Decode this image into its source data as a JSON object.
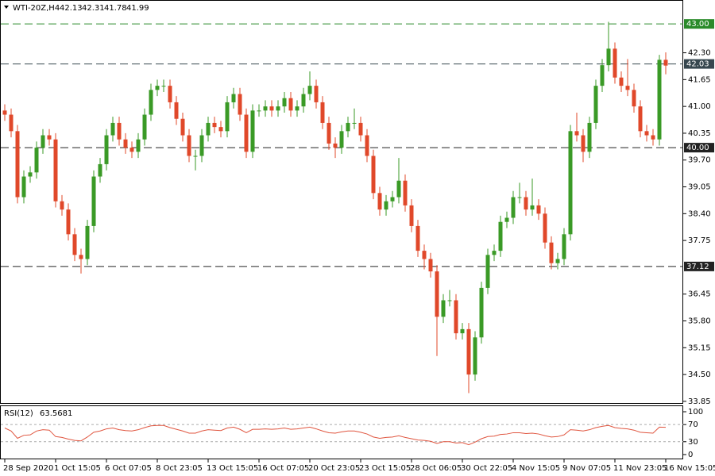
{
  "chart_data": [
    {
      "type": "candlestick",
      "title": "WTI-20Z,H4",
      "categories": [
        "28 Sep 2020",
        null,
        null,
        null,
        null,
        null,
        null,
        null,
        "1 Oct 15:05",
        null,
        null,
        null,
        null,
        null,
        null,
        null,
        "6 Oct 07:05",
        null,
        null,
        null,
        null,
        null,
        null,
        null,
        "8 Oct 23:05",
        null,
        null,
        null,
        null,
        null,
        null,
        null,
        "13 Oct 15:05",
        null,
        null,
        null,
        null,
        null,
        null,
        null,
        "16 Oct 07:05",
        null,
        null,
        null,
        null,
        null,
        null,
        null,
        "20 Oct 23:05",
        null,
        null,
        null,
        null,
        null,
        null,
        null,
        "23 Oct 15:05",
        null,
        null,
        null,
        null,
        null,
        null,
        null,
        "28 Oct 06:05",
        null,
        null,
        null,
        null,
        null,
        null,
        null,
        "30 Oct 22:05",
        null,
        null,
        null,
        null,
        null,
        null,
        null,
        "4 Nov 15:05",
        null,
        null,
        null,
        null,
        null,
        null,
        null,
        "9 Nov 07:05",
        null,
        null,
        null,
        null,
        null,
        null,
        null,
        "11 Nov 23:05",
        null,
        null,
        null,
        null,
        null,
        null,
        null,
        "16 Nov 15:05"
      ],
      "open": [
        40.9,
        40.8,
        40.4,
        38.8,
        39.3,
        39.4,
        40.0,
        40.3,
        40.2,
        38.7,
        38.5,
        37.9,
        37.4,
        37.3,
        38.1,
        39.3,
        39.6,
        40.3,
        40.6,
        40.2,
        40.0,
        39.9,
        40.2,
        40.8,
        41.4,
        41.5,
        41.5,
        41.1,
        40.7,
        40.3,
        39.8,
        39.8,
        40.3,
        40.6,
        40.5,
        40.4,
        41.1,
        41.3,
        40.8,
        39.9,
        40.9,
        40.9,
        41.0,
        40.9,
        41.0,
        41.2,
        40.9,
        41.0,
        41.3,
        41.5,
        41.1,
        40.6,
        40.1,
        40.0,
        40.4,
        40.6,
        40.6,
        40.3,
        39.8,
        38.9,
        38.5,
        38.7,
        38.8,
        39.2,
        38.6,
        38.1,
        37.5,
        37.3,
        37.0,
        35.9,
        36.3,
        36.3,
        35.5,
        35.6,
        34.5,
        35.4,
        36.6,
        37.4,
        37.5,
        38.2,
        38.3,
        38.8,
        38.8,
        38.5,
        38.6,
        38.4,
        37.7,
        37.2,
        37.3,
        37.9,
        40.4,
        40.3,
        39.9,
        40.6,
        41.5,
        42.0,
        42.4,
        41.7,
        41.5,
        41.4,
        41.0,
        40.4,
        40.3,
        40.2,
        42.13
      ],
      "high": [
        41.05,
        40.95,
        40.55,
        39.45,
        39.55,
        40.15,
        40.45,
        40.45,
        40.35,
        38.85,
        38.65,
        38.05,
        37.55,
        38.25,
        39.45,
        39.75,
        40.45,
        40.75,
        40.75,
        40.35,
        40.15,
        40.35,
        40.95,
        41.55,
        41.65,
        41.65,
        41.65,
        41.25,
        40.85,
        40.45,
        39.95,
        40.45,
        40.75,
        40.75,
        40.65,
        41.25,
        41.45,
        41.45,
        40.95,
        41.05,
        41.05,
        41.15,
        41.15,
        41.15,
        41.35,
        41.35,
        41.15,
        41.45,
        41.85,
        41.65,
        41.25,
        40.75,
        40.25,
        40.55,
        40.75,
        40.95,
        40.75,
        40.45,
        39.95,
        39.05,
        38.85,
        38.95,
        39.75,
        39.35,
        38.75,
        38.25,
        37.65,
        37.45,
        37.15,
        36.45,
        36.55,
        36.45,
        35.75,
        35.75,
        35.55,
        36.75,
        37.55,
        37.65,
        38.35,
        38.45,
        38.95,
        39.15,
        38.95,
        39.25,
        38.75,
        38.55,
        37.85,
        37.45,
        38.05,
        40.55,
        40.85,
        40.45,
        40.75,
        41.65,
        42.15,
        43.05,
        42.55,
        41.85,
        42.15,
        41.55,
        41.15,
        40.55,
        40.45,
        42.25,
        42.31
      ],
      "low": [
        40.65,
        40.25,
        38.65,
        38.65,
        39.15,
        39.25,
        39.85,
        40.05,
        38.55,
        38.35,
        37.75,
        37.25,
        36.95,
        37.15,
        37.95,
        39.15,
        39.45,
        40.15,
        40.05,
        39.85,
        39.75,
        39.75,
        40.05,
        40.65,
        41.25,
        41.35,
        40.95,
        40.55,
        40.15,
        39.65,
        39.45,
        39.65,
        40.15,
        40.35,
        40.25,
        40.25,
        40.95,
        40.65,
        39.75,
        39.75,
        40.75,
        40.75,
        40.75,
        40.75,
        40.85,
        40.75,
        40.75,
        40.85,
        41.15,
        40.95,
        40.45,
        39.95,
        39.75,
        39.85,
        40.25,
        40.45,
        40.15,
        39.65,
        38.75,
        38.35,
        38.35,
        38.55,
        38.65,
        38.45,
        37.95,
        37.35,
        37.05,
        36.85,
        34.95,
        35.75,
        36.15,
        35.35,
        35.35,
        34.05,
        34.35,
        35.25,
        36.45,
        37.25,
        37.35,
        38.05,
        38.15,
        38.65,
        38.35,
        38.35,
        38.25,
        37.55,
        37.05,
        37.05,
        37.15,
        37.75,
        40.15,
        39.65,
        39.75,
        40.45,
        41.35,
        41.85,
        41.55,
        41.35,
        41.25,
        40.85,
        40.25,
        40.15,
        40.05,
        40.05,
        41.78
      ],
      "close": [
        40.8,
        40.4,
        38.8,
        39.3,
        39.4,
        40.0,
        40.3,
        40.2,
        38.7,
        38.5,
        37.9,
        37.4,
        37.3,
        38.1,
        39.3,
        39.6,
        40.3,
        40.6,
        40.2,
        40.0,
        39.9,
        40.2,
        40.8,
        41.4,
        41.5,
        41.5,
        41.1,
        40.7,
        40.3,
        39.8,
        39.8,
        40.3,
        40.6,
        40.5,
        40.4,
        41.1,
        41.3,
        40.8,
        39.9,
        40.9,
        40.9,
        41.0,
        40.9,
        41.0,
        41.2,
        40.9,
        41.0,
        41.3,
        41.5,
        41.1,
        40.6,
        40.1,
        40.0,
        40.4,
        40.6,
        40.6,
        40.3,
        39.8,
        38.9,
        38.5,
        38.7,
        38.8,
        39.2,
        38.6,
        38.1,
        37.5,
        37.3,
        37.0,
        35.9,
        36.3,
        36.3,
        35.5,
        35.6,
        34.5,
        35.4,
        36.6,
        37.4,
        37.5,
        38.2,
        38.3,
        38.8,
        38.8,
        38.5,
        38.6,
        38.4,
        37.7,
        37.2,
        37.3,
        37.9,
        40.4,
        40.3,
        39.9,
        40.6,
        41.5,
        42.0,
        42.4,
        41.7,
        41.5,
        41.4,
        41.0,
        40.4,
        40.3,
        40.2,
        42.13,
        41.99
      ],
      "up_color": "#3a9a26",
      "down_color": "#e0482a",
      "ylim": [
        33.79,
        43.58
      ],
      "yticks": [
        {
          "value": 42.3,
          "label": "42.30"
        },
        41.65,
        {
          "value": 41,
          "label": "41.00"
        },
        40.35,
        {
          "value": 39.7,
          "label": "39.70"
        },
        39.05,
        {
          "value": 38.4,
          "label": "38.40"
        },
        37.75,
        36.45,
        {
          "value": 35.8,
          "label": "35.80"
        },
        35.15,
        {
          "value": 34.5,
          "label": "34.50"
        },
        33.85
      ],
      "levels": [
        {
          "value": 43,
          "label": "43.00",
          "color": "#2a8a2a"
        },
        {
          "value": 42.03,
          "label": "42.03",
          "color": "#37474f"
        },
        {
          "value": 40,
          "label": "40.00",
          "color": "#222222"
        },
        {
          "value": 37.12,
          "label": "37.12",
          "color": "#222222"
        }
      ]
    },
    {
      "type": "line",
      "title": "RSI(12)",
      "color": "#e0553f",
      "values": [
        62,
        55,
        38,
        45,
        46,
        55,
        58,
        57,
        42,
        40,
        36,
        33,
        32,
        41,
        52,
        55,
        60,
        62,
        58,
        56,
        55,
        58,
        63,
        67,
        68,
        68,
        63,
        59,
        55,
        50,
        50,
        55,
        58,
        57,
        56,
        62,
        64,
        59,
        51,
        59,
        59,
        60,
        59,
        60,
        62,
        59,
        60,
        62,
        64,
        60,
        55,
        51,
        50,
        53,
        55,
        55,
        52,
        48,
        41,
        38,
        40,
        41,
        44,
        40,
        37,
        34,
        33,
        31,
        26,
        30,
        30,
        27,
        28,
        23,
        29,
        37,
        42,
        43,
        47,
        48,
        51,
        51,
        49,
        50,
        48,
        44,
        41,
        42,
        46,
        58,
        57,
        55,
        58,
        63,
        66,
        68,
        63,
        61,
        60,
        57,
        52,
        51,
        50,
        64,
        63.5681
      ],
      "ylim": [
        -9.3,
        114.8
      ],
      "yticks": [
        100,
        70,
        30,
        0
      ],
      "levels": [
        70,
        30
      ]
    }
  ]
}
